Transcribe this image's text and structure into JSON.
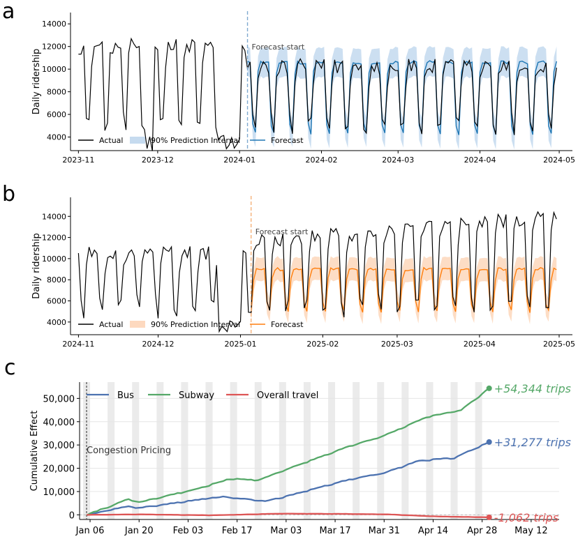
{
  "chart_data": [
    {
      "panel": "a",
      "type": "line",
      "ylabel": "Daily ridership",
      "yticks": [
        4000,
        6000,
        8000,
        10000,
        12000,
        14000
      ],
      "ylim": [
        2800,
        15000
      ],
      "xlim": [
        "2023-10-29",
        "2024-05-06"
      ],
      "xticks": [
        "2023-11",
        "2023-12",
        "2024-01",
        "2024-02",
        "2024-03",
        "2024-04",
        "2024-05"
      ],
      "forecast_start": "2024-01-04",
      "forecast_start_label": "Forecast start",
      "actual_start": "2023-11-01",
      "actual_end": "2024-04-30",
      "forecast_end": "2024-04-30",
      "weekday_high": 10200,
      "weekday_high_pre": 12000,
      "weekend_low": 4800,
      "forecast_weekday": 10600,
      "forecast_weekend": 4300,
      "interval_halfwidth": 1300,
      "colors": {
        "actual": "#000000",
        "forecast": "#1f77b4",
        "interval": "#c6dbef",
        "vline": "#7fa9cf"
      },
      "legend": [
        {
          "label": "Actual",
          "kind": "line",
          "color": "#000000"
        },
        {
          "label": "90% Prediction Interval",
          "kind": "patch",
          "color": "#c6dbef"
        },
        {
          "label": "Forecast",
          "kind": "line",
          "color": "#1f77b4"
        }
      ]
    },
    {
      "panel": "b",
      "type": "line",
      "ylabel": "Daily ridership",
      "yticks": [
        4000,
        6000,
        8000,
        10000,
        12000,
        14000
      ],
      "ylim": [
        2800,
        15800
      ],
      "xlim": [
        "2024-10-29",
        "2025-05-06"
      ],
      "xticks": [
        "2024-11",
        "2024-12",
        "2025-01",
        "2025-02",
        "2025-03",
        "2025-04",
        "2025-05"
      ],
      "forecast_start": "2025-01-05",
      "forecast_start_label": "Forecast start",
      "actual_start": "2024-11-01",
      "actual_end": "2025-04-30",
      "forecast_end": "2025-04-30",
      "weekday_high_pre": 10500,
      "weekday_high_post": 13500,
      "weekend_low": 5200,
      "forecast_weekday": 9000,
      "forecast_weekend": 5000,
      "interval_halfwidth": 1100,
      "colors": {
        "actual": "#000000",
        "forecast": "#ff7f0e",
        "interval": "#fdd9bf",
        "vline": "#f5b27a"
      },
      "legend": [
        {
          "label": "Actual",
          "kind": "line",
          "color": "#000000"
        },
        {
          "label": "90% Prediction Interval",
          "kind": "patch",
          "color": "#fdd9bf"
        },
        {
          "label": "Forecast",
          "kind": "line",
          "color": "#ff7f0e"
        }
      ]
    },
    {
      "panel": "c",
      "type": "line",
      "ylabel": "Cumulative Effect",
      "yticks": [
        0,
        10000,
        20000,
        30000,
        40000,
        50000
      ],
      "ytick_labels": [
        "0",
        "10,000",
        "20,000",
        "30,000",
        "40,000",
        "50,000"
      ],
      "ylim": [
        -2000,
        57000
      ],
      "xlim": [
        "2025-01-03",
        "2025-05-20"
      ],
      "xticks": [
        "2025-01-06",
        "2025-01-20",
        "2025-02-03",
        "2025-02-17",
        "2025-03-03",
        "2025-03-17",
        "2025-03-31",
        "2025-04-14",
        "2025-04-28",
        "2025-05-12"
      ],
      "xtick_labels": [
        "Jan 06",
        "Jan 20",
        "Feb 03",
        "Feb 17",
        "Mar 03",
        "Mar 17",
        "Mar 31",
        "Apr 14",
        "Apr 28",
        "May 12"
      ],
      "event_date": "2025-01-05",
      "event_label": "Congestion Pricing",
      "end_date": "2025-04-30",
      "series": [
        {
          "name": "Bus",
          "color": "#4c72b0",
          "final": 31277,
          "end_label": "+31,277 trips",
          "anchors": [
            [
              "2025-01-05",
              0
            ],
            [
              "2025-01-17",
              3800
            ],
            [
              "2025-01-20",
              3000
            ],
            [
              "2025-02-07",
              6800
            ],
            [
              "2025-02-13",
              7800
            ],
            [
              "2025-02-25",
              6000
            ],
            [
              "2025-03-03",
              8000
            ],
            [
              "2025-03-20",
              14800
            ],
            [
              "2025-03-31",
              18000
            ],
            [
              "2025-04-10",
              23300
            ],
            [
              "2025-04-20",
              24500
            ],
            [
              "2025-04-30",
              31277
            ]
          ]
        },
        {
          "name": "Subway",
          "color": "#55a868",
          "final": 54344,
          "end_label": "+54,344 trips",
          "anchors": [
            [
              "2025-01-05",
              0
            ],
            [
              "2025-01-17",
              6800
            ],
            [
              "2025-01-20",
              5500
            ],
            [
              "2025-02-05",
              11000
            ],
            [
              "2025-02-15",
              15500
            ],
            [
              "2025-02-23",
              15000
            ],
            [
              "2025-03-03",
              19500
            ],
            [
              "2025-03-20",
              29000
            ],
            [
              "2025-03-31",
              34000
            ],
            [
              "2025-04-12",
              42000
            ],
            [
              "2025-04-22",
              45000
            ],
            [
              "2025-04-30",
              54344
            ]
          ]
        },
        {
          "name": "Overall travel",
          "color": "#dd5555",
          "final": -1062,
          "end_label": "-1,062 trips",
          "anchors": [
            [
              "2025-01-05",
              0
            ],
            [
              "2025-01-20",
              200
            ],
            [
              "2025-02-10",
              -200
            ],
            [
              "2025-03-01",
              500
            ],
            [
              "2025-03-20",
              400
            ],
            [
              "2025-04-01",
              200
            ],
            [
              "2025-04-15",
              -700
            ],
            [
              "2025-04-30",
              -1062
            ]
          ]
        }
      ],
      "weekend_shading": true,
      "shade_color": "#ebebeb"
    }
  ],
  "panel_letters": [
    "a",
    "b",
    "c"
  ]
}
